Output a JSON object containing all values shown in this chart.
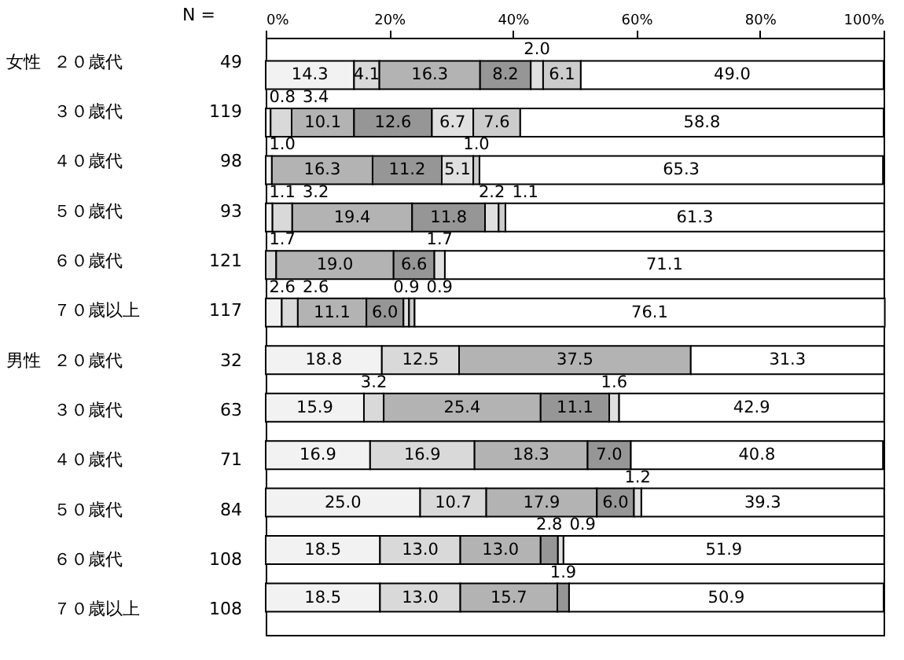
{
  "chart_data": {
    "type": "bar",
    "orientation": "horizontal",
    "stacked": true,
    "legend": false,
    "grid": false,
    "categories": [
      "２０歳代",
      "３０歳代",
      "４０歳代",
      "５０歳代",
      "６０歳代",
      "７０歳以上",
      "２０歳代",
      "３０歳代",
      "４０歳代",
      "５０歳代",
      "６０歳代",
      "７０歳以上"
    ],
    "xlim": [
      0,
      100
    ],
    "xticks": [
      {
        "value": 0,
        "label": "0%"
      },
      {
        "value": 20,
        "label": "20%"
      },
      {
        "value": 40,
        "label": "40%"
      },
      {
        "value": 60,
        "label": "60%"
      },
      {
        "value": 80,
        "label": "80%"
      },
      {
        "value": 100,
        "label": "100%"
      }
    ],
    "annotations": [
      "N =",
      "49",
      "119",
      "98",
      "93",
      "121",
      "117",
      "32",
      "63",
      "71",
      "84",
      "108",
      "108",
      "女性",
      "男性"
    ],
    "series": [
      {
        "color": "#f2f2f2",
        "values": [
          14.3,
          0.8,
          1.0,
          1.1,
          null,
          2.6,
          18.8,
          15.9,
          16.9,
          25.0,
          18.5,
          18.5
        ],
        "value_labels": [
          "14.3",
          "0.8",
          "1.0",
          "1.1",
          null,
          "2.6",
          "18.8",
          "15.9",
          "16.9",
          "25.0",
          "18.5",
          "18.5"
        ]
      },
      {
        "color": "#d9d9d9",
        "values": [
          4.1,
          3.4,
          null,
          3.2,
          1.7,
          2.6,
          12.5,
          3.2,
          16.9,
          10.7,
          13.0,
          13.0
        ],
        "value_labels": [
          "4.1",
          "3.4",
          null,
          "3.2",
          "1.7",
          "2.6",
          "12.5",
          "3.2",
          "16.9",
          "10.7",
          "13.0",
          "13.0"
        ]
      },
      {
        "color": "#b3b3b3",
        "values": [
          16.3,
          10.1,
          16.3,
          19.4,
          19.0,
          11.1,
          37.5,
          25.4,
          18.3,
          17.9,
          13.0,
          15.7
        ],
        "value_labels": [
          "16.3",
          "10.1",
          "16.3",
          "19.4",
          "19.0",
          "11.1",
          "37.5",
          "25.4",
          "18.3",
          "17.9",
          "13.0",
          "15.7"
        ]
      },
      {
        "color": "#969696",
        "values": [
          8.2,
          12.6,
          11.2,
          11.8,
          6.6,
          6.0,
          null,
          11.1,
          7.0,
          6.0,
          2.8,
          1.9
        ],
        "value_labels": [
          "8.2",
          "12.6",
          "11.2",
          "11.8",
          "6.6",
          "6.0",
          null,
          "11.1",
          "7.0",
          "6.0",
          "2.8",
          "1.9"
        ]
      },
      {
        "color": "#e0e0e0",
        "values": [
          2.0,
          6.7,
          5.1,
          2.2,
          1.7,
          0.9,
          null,
          1.6,
          null,
          1.2,
          0.9,
          null
        ],
        "value_labels": [
          "2.0",
          "6.7",
          "5.1",
          "2.2",
          "1.7",
          "0.9",
          null,
          "1.6",
          null,
          "1.2",
          "0.9",
          null
        ]
      },
      {
        "color": "#cccccc",
        "values": [
          6.1,
          7.6,
          1.0,
          1.1,
          null,
          0.9,
          null,
          null,
          null,
          null,
          null,
          null
        ],
        "value_labels": [
          "6.1",
          "7.6",
          "1.0",
          "1.1",
          null,
          "0.9",
          null,
          null,
          null,
          null,
          null,
          null
        ]
      },
      {
        "color": "#ffffff",
        "values": [
          49.0,
          58.8,
          65.3,
          61.3,
          71.1,
          76.1,
          31.3,
          42.9,
          40.8,
          39.3,
          51.9,
          50.9
        ],
        "value_labels": [
          "49.0",
          "58.8",
          "65.3",
          "61.3",
          "71.1",
          "76.1",
          "31.3",
          "42.9",
          "40.8",
          "39.3",
          "51.9",
          "50.9"
        ]
      }
    ]
  }
}
